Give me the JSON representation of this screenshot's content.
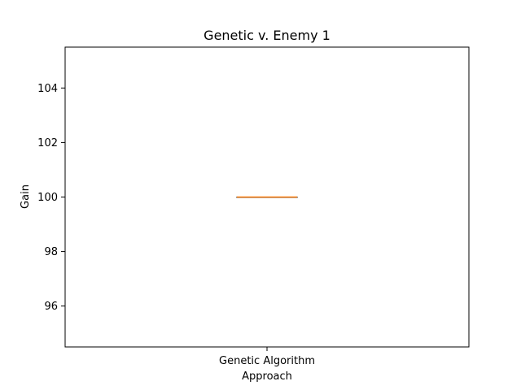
{
  "chart_data": {
    "type": "box",
    "title": "Genetic v. Enemy 1",
    "xlabel": "Approach",
    "ylabel": "Gain",
    "categories": [
      "Genetic Algorithm"
    ],
    "boxes": [
      {
        "name": "Genetic Algorithm",
        "min": 100,
        "q1": 100,
        "median": 100,
        "q3": 100,
        "max": 100
      }
    ],
    "ylim": [
      94.5,
      105.5
    ],
    "yticks": [
      96,
      98,
      100,
      102,
      104
    ],
    "grid": false,
    "colors": {
      "box": "#000000",
      "median": "#ff7f0e"
    }
  }
}
